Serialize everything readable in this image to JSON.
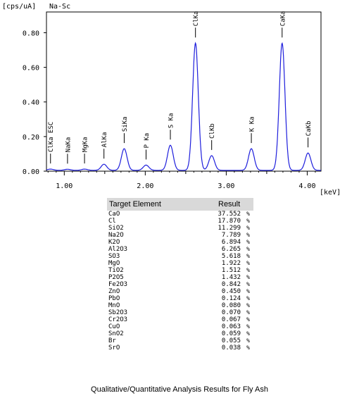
{
  "chart_data": {
    "type": "line",
    "title": "Na-Sc",
    "ylabel": "[cps/uA]",
    "xlabel": "[keV]",
    "xlim": [
      0.78,
      4.17
    ],
    "ylim": [
      0,
      0.92
    ],
    "xticks": [
      "1.00",
      "2.00",
      "3.00",
      "4.00"
    ],
    "yticks": [
      "0.00",
      "0.20",
      "0.40",
      "0.60",
      "0.80"
    ],
    "xtick_values": [
      1.0,
      2.0,
      3.0,
      4.0
    ],
    "ytick_values": [
      0.0,
      0.2,
      0.4,
      0.6,
      0.8
    ],
    "line_color": "#1e1edc",
    "baseline": 0.005,
    "peaks": [
      {
        "label": "ClKa ESC",
        "x": 0.83,
        "y": 0.012
      },
      {
        "label": "NaKa",
        "x": 1.04,
        "y": 0.011
      },
      {
        "label": "MgKa",
        "x": 1.25,
        "y": 0.012
      },
      {
        "label": "AlKa",
        "x": 1.49,
        "y": 0.04
      },
      {
        "label": "SiKa",
        "x": 1.74,
        "y": 0.13
      },
      {
        "label": "P Ka",
        "x": 2.01,
        "y": 0.035
      },
      {
        "label": "S Ka",
        "x": 2.31,
        "y": 0.15
      },
      {
        "label": "ClKa",
        "x": 2.62,
        "y": 0.74
      },
      {
        "label": "ClKb",
        "x": 2.82,
        "y": 0.09
      },
      {
        "label": "K Ka",
        "x": 3.31,
        "y": 0.13
      },
      {
        "label": "CaKa",
        "x": 3.69,
        "y": 0.74
      },
      {
        "label": "CaKb",
        "x": 4.01,
        "y": 0.105
      }
    ]
  },
  "table": {
    "headers": [
      "Target Element",
      "Result"
    ],
    "rows": [
      {
        "element": "CaO",
        "value": "37.552",
        "unit": "%"
      },
      {
        "element": "Cl",
        "value": "17.870",
        "unit": "%"
      },
      {
        "element": "SiO2",
        "value": "11.299",
        "unit": "%"
      },
      {
        "element": "Na2O",
        "value": "7.789",
        "unit": "%"
      },
      {
        "element": "K2O",
        "value": "6.894",
        "unit": "%"
      },
      {
        "element": "Al2O3",
        "value": "6.265",
        "unit": "%"
      },
      {
        "element": "SO3",
        "value": "5.618",
        "unit": "%"
      },
      {
        "element": "MgO",
        "value": "1.922",
        "unit": "%"
      },
      {
        "element": "TiO2",
        "value": "1.512",
        "unit": "%"
      },
      {
        "element": "P2O5",
        "value": "1.432",
        "unit": "%"
      },
      {
        "element": "Fe2O3",
        "value": "0.842",
        "unit": "%"
      },
      {
        "element": "ZnO",
        "value": "0.450",
        "unit": "%"
      },
      {
        "element": "PbO",
        "value": "0.124",
        "unit": "%"
      },
      {
        "element": "MnO",
        "value": "0.080",
        "unit": "%"
      },
      {
        "element": "Sb2O3",
        "value": "0.070",
        "unit": "%"
      },
      {
        "element": "Cr2O3",
        "value": "0.067",
        "unit": "%"
      },
      {
        "element": "CuO",
        "value": "0.063",
        "unit": "%"
      },
      {
        "element": "SnO2",
        "value": "0.059",
        "unit": "%"
      },
      {
        "element": "Br",
        "value": "0.055",
        "unit": "%"
      },
      {
        "element": "SrO",
        "value": "0.038",
        "unit": "%"
      }
    ]
  },
  "caption": "Qualitative/Quantitative Analysis Results for Fly Ash"
}
